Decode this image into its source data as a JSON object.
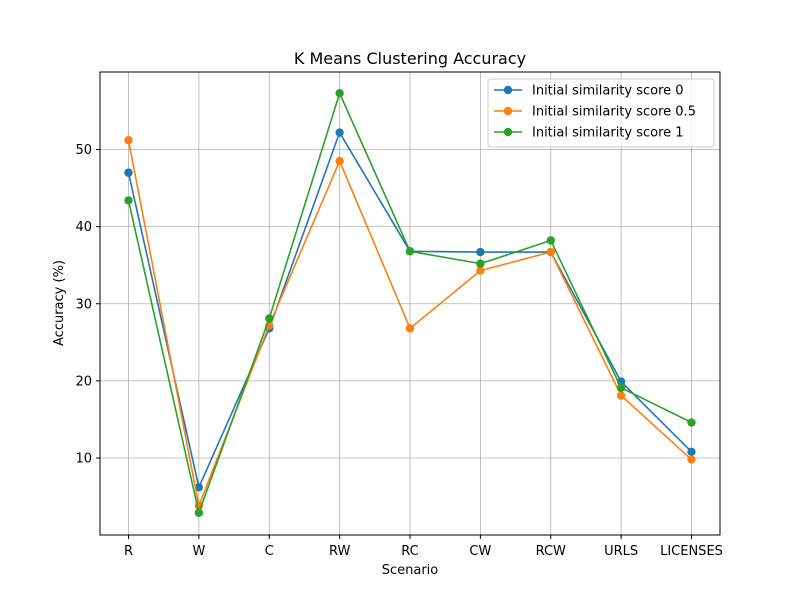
{
  "chart_data": {
    "type": "line",
    "title": "K Means Clustering Accuracy",
    "xlabel": "Scenario",
    "ylabel": "Accuracy (%)",
    "categories": [
      "R",
      "W",
      "C",
      "RW",
      "RC",
      "CW",
      "RCW",
      "URLS",
      "LICENSES"
    ],
    "ylim": [
      0,
      60
    ],
    "yticks": [
      10,
      20,
      30,
      40,
      50
    ],
    "grid": true,
    "legend_position": "top-right",
    "series": [
      {
        "name": "Initial similarity score 0",
        "color": "#1f77b4",
        "values": [
          47.0,
          6.2,
          26.8,
          52.2,
          36.8,
          36.7,
          36.7,
          19.9,
          10.8
        ]
      },
      {
        "name": "Initial similarity score 0.5",
        "color": "#ff7f0e",
        "values": [
          51.2,
          3.8,
          27.2,
          48.5,
          26.8,
          34.3,
          36.7,
          18.1,
          9.8
        ]
      },
      {
        "name": "Initial similarity score 1",
        "color": "#2ca02c",
        "values": [
          43.4,
          2.9,
          28.1,
          57.3,
          36.8,
          35.2,
          38.2,
          19.1,
          14.6
        ]
      }
    ]
  }
}
